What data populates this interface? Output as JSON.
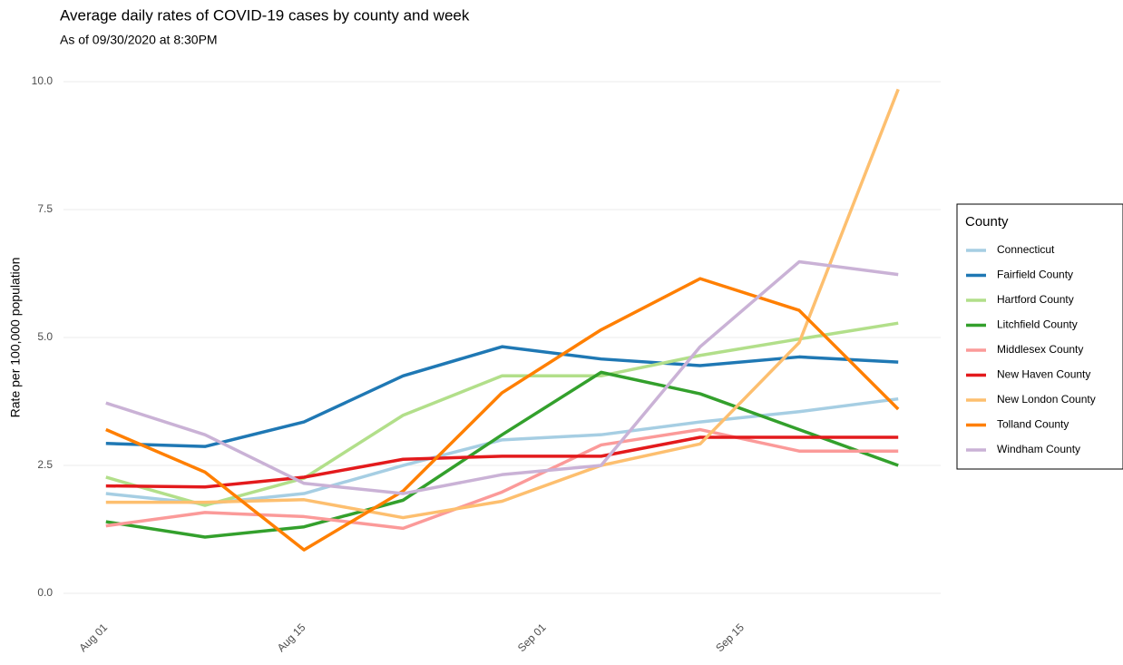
{
  "chart_data": {
    "type": "line",
    "title": "Average daily rates of COVID-19 cases by county and week",
    "subtitle": "As of 09/30/2020 at 8:30PM",
    "y_label": "Rate per 100,000 population",
    "legend_title": "County",
    "legend_position": "right",
    "grid": true,
    "x": [
      "Aug 01",
      "Aug 08",
      "Aug 15",
      "Aug 22",
      "Aug 29",
      "Sep 05",
      "Sep 12",
      "Sep 19",
      "Sep 26"
    ],
    "xlim": [
      "Jul 29",
      "Sep 29"
    ],
    "xticks": [
      "Aug 01",
      "Aug 15",
      "Sep 01",
      "Sep 15"
    ],
    "ylim": [
      -0.4,
      10.4
    ],
    "yticks": [
      {
        "value": 0,
        "label": "0.0"
      },
      {
        "value": 2.5,
        "label": "2.5"
      },
      {
        "value": 5,
        "label": "5.0"
      },
      {
        "value": 7.5,
        "label": "7.5"
      },
      {
        "value": 10,
        "label": "10.0"
      }
    ],
    "series": [
      {
        "name": "Connecticut",
        "color": "#a6cee3",
        "values": [
          1.95,
          1.75,
          1.95,
          2.5,
          3.0,
          3.1,
          3.35,
          3.55,
          3.8
        ]
      },
      {
        "name": "Fairfield County",
        "color": "#1f78b4",
        "values": [
          2.93,
          2.87,
          3.35,
          4.25,
          4.82,
          4.58,
          4.45,
          4.62,
          4.52
        ]
      },
      {
        "name": "Hartford County",
        "color": "#b2df8a",
        "values": [
          2.27,
          1.72,
          2.25,
          3.48,
          4.25,
          4.25,
          4.65,
          4.97,
          5.28
        ]
      },
      {
        "name": "Litchfield County",
        "color": "#33a02c",
        "values": [
          1.4,
          1.1,
          1.3,
          1.82,
          3.1,
          4.32,
          3.9,
          3.2,
          2.5
        ]
      },
      {
        "name": "Middlesex County",
        "color": "#fb9a99",
        "values": [
          1.32,
          1.58,
          1.5,
          1.27,
          1.98,
          2.9,
          3.2,
          2.78,
          2.78
        ]
      },
      {
        "name": "New Haven County",
        "color": "#e31a1c",
        "values": [
          2.1,
          2.08,
          2.27,
          2.62,
          2.68,
          2.68,
          3.05,
          3.05,
          3.05
        ]
      },
      {
        "name": "New London County",
        "color": "#fdbf6f",
        "values": [
          1.78,
          1.78,
          1.83,
          1.48,
          1.8,
          2.5,
          2.92,
          4.9,
          9.85
        ]
      },
      {
        "name": "Tolland County",
        "color": "#ff7f00",
        "values": [
          3.2,
          2.37,
          0.85,
          2.0,
          3.92,
          5.15,
          6.15,
          5.53,
          3.6
        ]
      },
      {
        "name": "Windham County",
        "color": "#cab2d6",
        "values": [
          3.72,
          3.1,
          2.15,
          1.95,
          2.32,
          2.5,
          4.82,
          6.48,
          6.23
        ]
      }
    ]
  }
}
